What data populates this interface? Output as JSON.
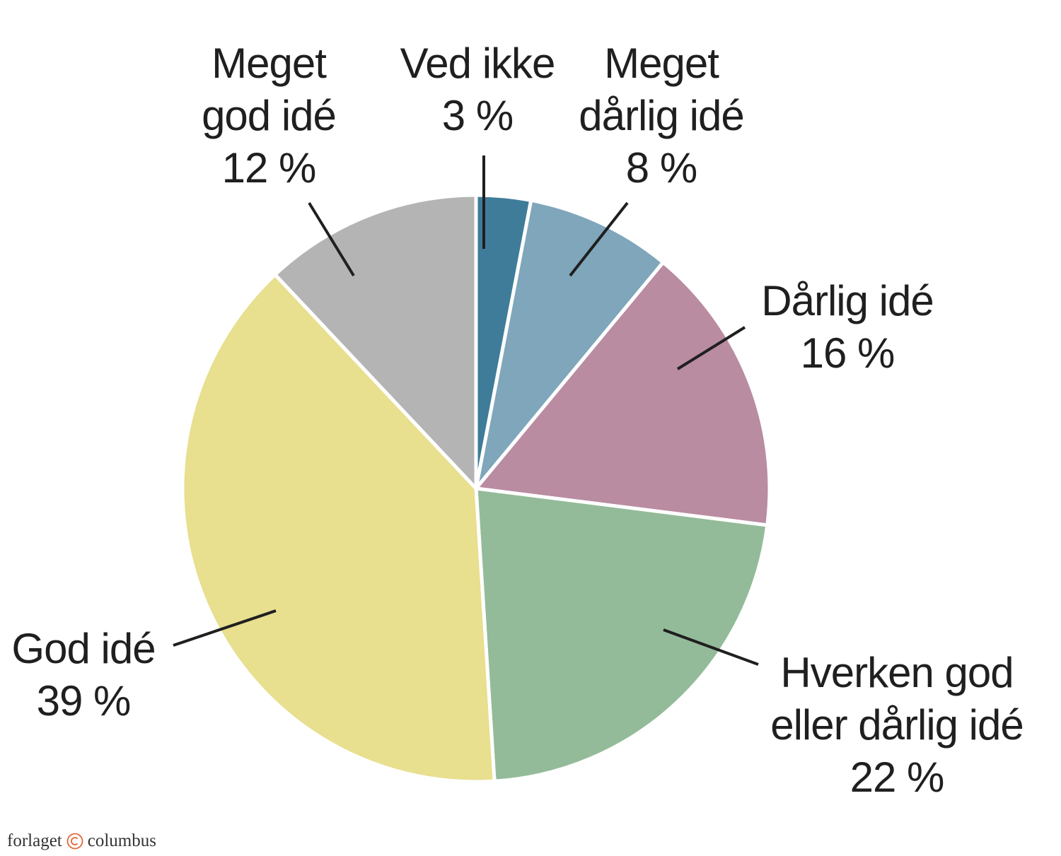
{
  "chart_data": {
    "type": "pie",
    "title": "",
    "slices": [
      {
        "label_lines": [
          "Ved ikke"
        ],
        "value": 3,
        "value_label": "3 %",
        "color": "#3f7c99"
      },
      {
        "label_lines": [
          "Meget",
          "dårlig idé"
        ],
        "value": 8,
        "value_label": "8 %",
        "color": "#7fa6bb"
      },
      {
        "label_lines": [
          "Dårlig idé"
        ],
        "value": 16,
        "value_label": "16 %",
        "color": "#b98ca2"
      },
      {
        "label_lines": [
          "Hverken god",
          "eller dårlig idé"
        ],
        "value": 22,
        "value_label": "22 %",
        "color": "#93bb99"
      },
      {
        "label_lines": [
          "God idé"
        ],
        "value": 39,
        "value_label": "39 %",
        "color": "#e8df8f"
      },
      {
        "label_lines": [
          "Meget",
          "god idé"
        ],
        "value": 12,
        "value_label": "12 %",
        "color": "#b4b4b4"
      }
    ],
    "start": "12 o'clock",
    "direction": "clockwise",
    "legend": "none"
  },
  "footer": {
    "publisher_left": "forlaget",
    "publisher_right": "columbus",
    "copyright_color": "#e06a3a"
  }
}
